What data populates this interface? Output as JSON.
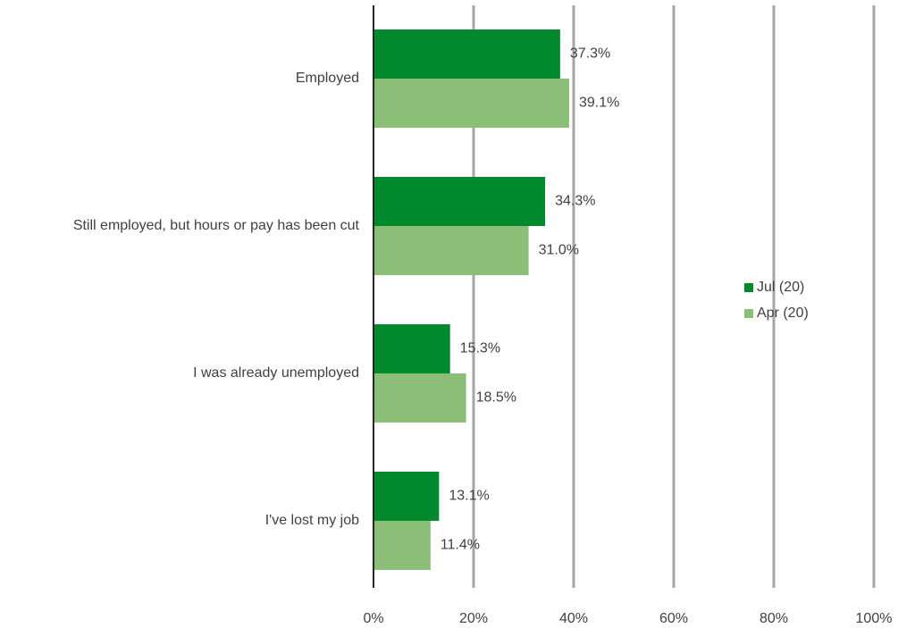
{
  "chart_data": {
    "type": "bar",
    "orientation": "horizontal",
    "categories": [
      "Employed",
      "Still employed, but hours or pay has been cut",
      "I was already unemployed",
      "I've lost my job"
    ],
    "series": [
      {
        "name": "Jul (20)",
        "color": "#00892d",
        "values": [
          37.3,
          34.3,
          15.3,
          13.1
        ],
        "labels": [
          "37.3%",
          "34.3%",
          "15.3%",
          "13.1%"
        ]
      },
      {
        "name": "Apr (20)",
        "color": "#8bbf77",
        "values": [
          39.1,
          31.0,
          18.5,
          11.4
        ],
        "labels": [
          "39.1%",
          "31.0%",
          "18.5%",
          "11.4%"
        ]
      }
    ],
    "xlim": [
      0,
      100
    ],
    "xticks": [
      "0%",
      "20%",
      "40%",
      "60%",
      "80%",
      "100%"
    ],
    "grid": "vertical",
    "legend": "right",
    "title": "",
    "xlabel": "",
    "ylabel": ""
  }
}
